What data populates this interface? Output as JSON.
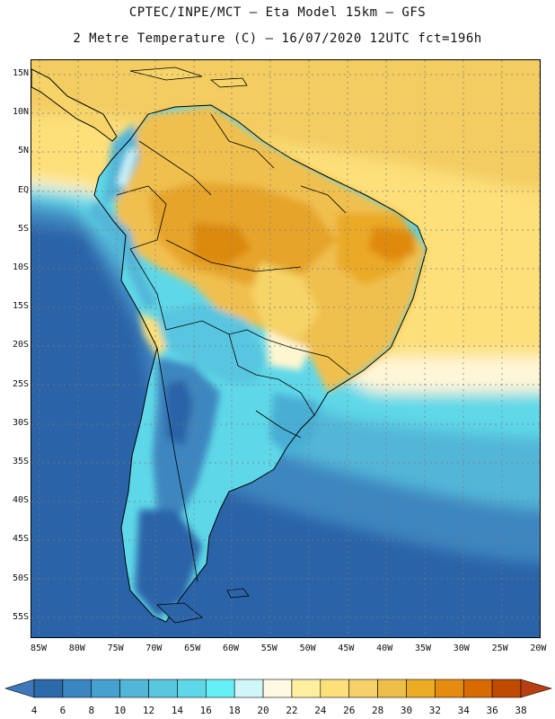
{
  "title": {
    "line1": "CPTEC/INPE/MCT –  Eta Model 15km – GFS",
    "line2": "2 Metre Temperature (C) – 16/07/2020 12UTC fct=196h"
  },
  "map": {
    "lat_labels": [
      "15N",
      "10N",
      "5N",
      "EQ",
      "5S",
      "10S",
      "15S",
      "20S",
      "25S",
      "30S",
      "35S",
      "40S",
      "45S",
      "50S",
      "55S"
    ],
    "lon_labels": [
      "85W",
      "80W",
      "75W",
      "70W",
      "65W",
      "60W",
      "55W",
      "50W",
      "45W",
      "40W",
      "35W",
      "30W",
      "25W",
      "20W"
    ]
  },
  "colorbar": {
    "labels": [
      "4",
      "6",
      "8",
      "10",
      "12",
      "14",
      "16",
      "18",
      "20",
      "22",
      "24",
      "26",
      "28",
      "30",
      "32",
      "34",
      "36",
      "38"
    ],
    "colors": [
      "#2c6aaa",
      "#3a86c2",
      "#46a0d0",
      "#52b6d8",
      "#58c8de",
      "#5ed8e8",
      "#64f0f4",
      "#d0f6fa",
      "#fff8e2",
      "#fff0a0",
      "#fde07a",
      "#f6d068",
      "#eebf48",
      "#ecac24",
      "#e58c10",
      "#d86a02",
      "#c04a00"
    ],
    "low_end_color": "#3e78b8",
    "high_end_color": "#b84010"
  },
  "colors": {
    "land_outline": "#000000",
    "grid": "#7a7a7a"
  }
}
